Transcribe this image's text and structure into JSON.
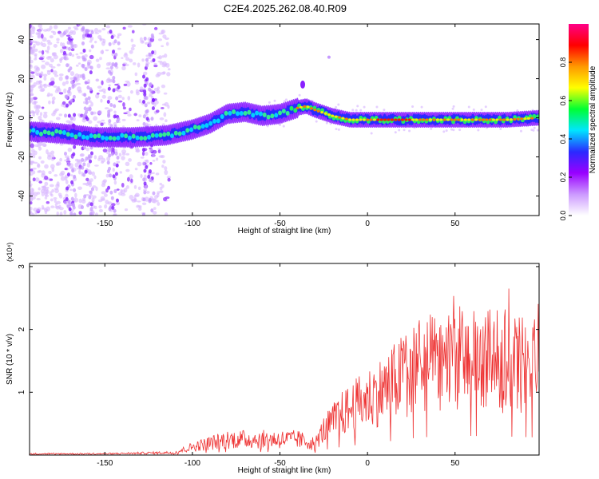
{
  "title": "C2E4.2025.262.08.40.R09",
  "chart_data": [
    {
      "type": "heatmap",
      "xlabel": "Height of straight line (km)",
      "ylabel": "Frequency (Hz)",
      "xlim": [
        -193,
        98
      ],
      "ylim": [
        -50,
        48
      ],
      "xticks": [
        -150,
        -100,
        -50,
        0,
        50
      ],
      "yticks": [
        -40,
        -20,
        0,
        20,
        40
      ],
      "colorbar": {
        "label": "Normalized spectral amplitude",
        "range": [
          0,
          1
        ],
        "ticks": [
          "0.0",
          "0.2",
          "0.4",
          "0.6",
          "0.8"
        ],
        "colors": [
          "#ffffff",
          "#cc99ff",
          "#9900ff",
          "#2a2aff",
          "#00e5ff",
          "#00ff33",
          "#ffff00",
          "#ff9900",
          "#ff0000",
          "#ff0088"
        ]
      },
      "ridge": {
        "x": [
          -193,
          -175,
          -155,
          -135,
          -115,
          -100,
          -90,
          -80,
          -70,
          -60,
          -50,
          -40,
          -35,
          -30,
          -20,
          -10,
          0,
          20,
          40,
          60,
          80,
          98
        ],
        "y": [
          -7,
          -8,
          -10,
          -10,
          -9,
          -6,
          -3,
          2,
          3,
          1,
          2,
          5,
          6,
          4,
          1,
          -1,
          -1,
          -1,
          -1,
          -1,
          -1,
          0
        ]
      }
    },
    {
      "type": "line",
      "xlabel": "Height of straight line (km)",
      "ylabel": "SNR (10 * v/v)",
      "y_multiplier": "(x10⁴)",
      "xlim": [
        -193,
        98
      ],
      "ylim": [
        0,
        3.05
      ],
      "xticks": [
        -150,
        -100,
        -50,
        0,
        50
      ],
      "yticks": [
        1,
        2,
        3
      ],
      "series": [
        {
          "name": "SNR",
          "color": "#ee3333",
          "envelope_x": [
            -193,
            -150,
            -110,
            -100,
            -80,
            -60,
            -40,
            -30,
            -25,
            -15,
            0,
            10,
            20,
            30,
            50,
            70,
            85,
            98
          ],
          "envelope_y": [
            0.02,
            0.02,
            0.04,
            0.13,
            0.25,
            0.25,
            0.25,
            0.18,
            0.4,
            0.65,
            0.9,
            1.05,
            1.25,
            1.4,
            1.55,
            1.5,
            1.45,
            1.4
          ]
        }
      ]
    }
  ]
}
